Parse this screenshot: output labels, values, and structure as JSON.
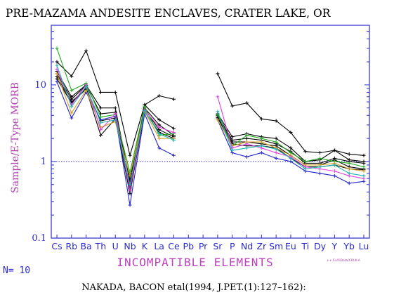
{
  "chart_data": {
    "type": "line",
    "title": "PRE-MAZAMA ANDESITE ENCLAVES, CRATER LAKE, OR",
    "xlabel": "INCOMPATIBLE ELEMENTS",
    "ylabel": "Sample/E-Type MORB",
    "yscale": "log",
    "ylim": [
      0.1,
      60
    ],
    "yticks": [
      {
        "value": 0.1,
        "label": "0.1"
      },
      {
        "value": 1,
        "label": "1"
      },
      {
        "value": 10,
        "label": "10"
      }
    ],
    "reference_line": 1,
    "categories": [
      "Cs",
      "Rb",
      "Ba",
      "Th",
      "U",
      "Nb",
      "K",
      "La",
      "Ce",
      "Pb",
      "Pr",
      "Sr",
      "P",
      "Nd",
      "Zr",
      "Sm",
      "Eu",
      "Ti",
      "Dy",
      "Y",
      "Yb",
      "Lu"
    ],
    "series": [
      {
        "color": "#000000",
        "values": [
          20,
          13,
          28,
          8,
          8,
          1.2,
          5.5,
          7.2,
          6.5,
          null,
          null,
          14,
          5.3,
          5.8,
          3.6,
          3.4,
          2.4,
          1.35,
          1.3,
          1.4,
          1.25,
          1.2
        ]
      },
      {
        "color": "#000000",
        "values": [
          15,
          7,
          10,
          5,
          5,
          0.55,
          5.5,
          3.5,
          2.7,
          null,
          null,
          4.2,
          2.1,
          2.3,
          2.1,
          2.0,
          1.5,
          1.0,
          1.05,
          1.4,
          1.05,
          1.0
        ]
      },
      {
        "color": "#000000",
        "values": [
          14,
          6.5,
          9.8,
          4.2,
          4.4,
          0.45,
          5.0,
          3.0,
          2.2,
          null,
          null,
          4.0,
          1.9,
          2.0,
          1.9,
          1.7,
          1.35,
          0.95,
          0.95,
          1.1,
          1.0,
          0.95
        ]
      },
      {
        "color": "#000000",
        "values": [
          13,
          6,
          9,
          3.4,
          3.7,
          0.62,
          4.8,
          2.6,
          2.1,
          null,
          null,
          3.8,
          1.8,
          1.8,
          1.7,
          1.6,
          1.2,
          0.9,
          0.9,
          1.05,
          0.85,
          0.8
        ]
      },
      {
        "color": "#000000",
        "values": [
          12,
          5.8,
          8.8,
          2.2,
          3.6,
          0.38,
          4.5,
          2.4,
          2.0,
          null,
          null,
          3.7,
          1.7,
          1.6,
          1.6,
          1.5,
          1.1,
          0.85,
          0.85,
          0.9,
          0.8,
          0.78
        ]
      },
      {
        "color": "#2222cc",
        "values": [
          11,
          3.7,
          8,
          3.5,
          3.9,
          0.27,
          4.2,
          1.5,
          1.2,
          null,
          null,
          3.5,
          1.3,
          1.15,
          1.3,
          1.1,
          1.0,
          0.75,
          0.7,
          0.65,
          0.52,
          0.55
        ]
      },
      {
        "color": "#22aa22",
        "values": [
          30,
          8.5,
          10.5,
          3.8,
          4.1,
          0.72,
          5.2,
          2.2,
          2.3,
          null,
          null,
          4.1,
          1.6,
          2.2,
          2.0,
          1.8,
          1.3,
          1.0,
          1.1,
          1.0,
          0.95,
          0.85
        ]
      },
      {
        "color": "#d4a020",
        "values": [
          14,
          4.3,
          8.5,
          2.8,
          3.3,
          0.65,
          4.5,
          2.0,
          2.0,
          null,
          null,
          3.5,
          1.6,
          1.8,
          1.8,
          1.5,
          1.2,
          0.9,
          0.9,
          0.95,
          0.8,
          0.75
        ]
      },
      {
        "color": "#e040e0",
        "values": [
          16,
          5.5,
          10,
          2.6,
          4.2,
          0.42,
          4.7,
          2.8,
          2.4,
          null,
          null,
          7.0,
          1.5,
          1.7,
          1.5,
          1.3,
          1.15,
          0.85,
          0.8,
          0.75,
          0.65,
          0.6
        ]
      },
      {
        "color": "#22b0b0",
        "values": [
          18,
          5.2,
          9.5,
          3.2,
          3.5,
          0.5,
          4.6,
          2.3,
          1.9,
          null,
          null,
          4.5,
          1.4,
          1.5,
          1.6,
          1.45,
          1.1,
          0.8,
          0.85,
          0.9,
          0.7,
          0.65
        ]
      }
    ]
  },
  "legend_note": "++ Ex/OData/CRLK-A",
  "sample_count": "N= 10",
  "citation": "NAKADA, BACON etal(1994, J.PET.(1):127–162):"
}
